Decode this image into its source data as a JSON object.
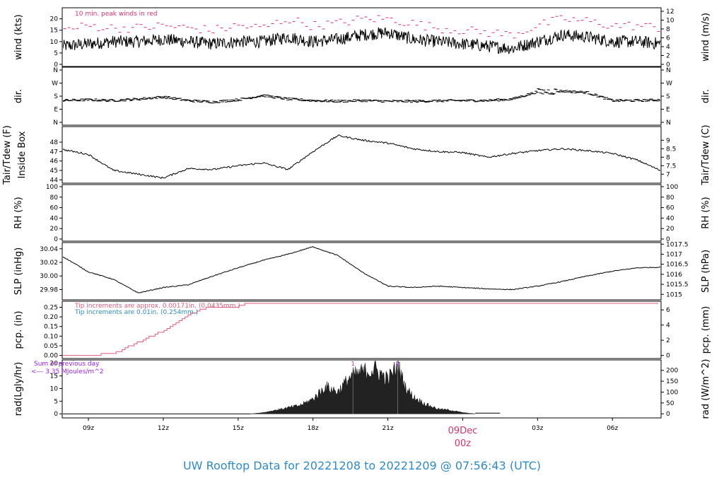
{
  "footer": {
    "title_prefix": "UW Rooftop Data for",
    "date_start": "20221208",
    "to": "to",
    "date_end": "20221209",
    "at": "@",
    "time": "07:56:43",
    "tz": "(UTC)",
    "full": "UW Rooftop Data for 20221208  to  20221209 @ 07:56:43  (UTC)"
  },
  "x_axis": {
    "ticks": [
      {
        "label": "09z",
        "hour": 9
      },
      {
        "label": "12z",
        "hour": 12
      },
      {
        "label": "15z",
        "hour": 15
      },
      {
        "label": "18z",
        "hour": 18
      },
      {
        "label": "21z",
        "hour": 21
      },
      {
        "label": "03z",
        "hour": 27
      },
      {
        "label": "06z",
        "hour": 30
      }
    ],
    "day_marker": {
      "date": "09Dec",
      "time": "00z",
      "hour": 24
    },
    "range_hours": [
      7.95,
      31.95
    ]
  },
  "colors": {
    "trace": "#000000",
    "peak": "#d6336c",
    "precip": "#e05a7a",
    "note_blue": "#2e8bc9",
    "note_purple": "#a020f0",
    "footer": "#2e8bc9",
    "day_marker": "#d6336c"
  },
  "chart_data": [
    {
      "id": "wind",
      "type": "line",
      "ylabel_left": "wind (kts)",
      "ylabel_right": "wind (m/s)",
      "ylim": [
        0,
        23
      ],
      "left_ticks": [
        0,
        5,
        10,
        15,
        20
      ],
      "right_ticks": [
        0,
        2,
        4,
        6,
        8,
        10,
        12
      ],
      "annotation": "10 min. peak winds in red",
      "series": [
        {
          "hours": [
            8,
            9,
            10,
            11,
            12,
            13,
            14,
            15,
            16,
            17,
            18,
            19,
            20,
            21,
            22,
            23,
            24,
            25,
            26,
            27,
            28,
            29,
            30,
            31,
            32
          ],
          "values": [
            8,
            9,
            10,
            10,
            11,
            10,
            9,
            10,
            10,
            12,
            10,
            11,
            13,
            14,
            11,
            10,
            9,
            8,
            7,
            10,
            13,
            12,
            10,
            10,
            9
          ]
        },
        {
          "name": "10 min. peak",
          "hours": [
            8,
            9,
            10,
            11,
            12,
            13,
            14,
            15,
            16,
            17,
            18,
            19,
            20,
            21,
            22,
            23,
            24,
            25,
            26,
            27,
            28,
            29,
            30,
            31,
            32
          ],
          "values": [
            15,
            17,
            16,
            16,
            17,
            16,
            15,
            17,
            16,
            20,
            17,
            18,
            20,
            20,
            18,
            16,
            15,
            14,
            13,
            17,
            20,
            19,
            17,
            17,
            16
          ]
        }
      ]
    },
    {
      "id": "dir",
      "type": "scatter",
      "ylabel_left": "dir.",
      "ylabel_right": "dir.",
      "ylim": [
        0,
        360
      ],
      "left_ticks": [
        "N",
        "E",
        "S",
        "W",
        "N"
      ],
      "right_ticks": [
        "N",
        "E",
        "S",
        "W",
        "N"
      ],
      "series": [
        {
          "hours": [
            8,
            9,
            10,
            11,
            12,
            13,
            14,
            15,
            16,
            17,
            18,
            19,
            20,
            21,
            22,
            23,
            24,
            25,
            26,
            27,
            28,
            29,
            30,
            31,
            32
          ],
          "values": [
            150,
            155,
            150,
            160,
            175,
            150,
            140,
            155,
            185,
            160,
            150,
            145,
            150,
            145,
            145,
            148,
            150,
            150,
            160,
            210,
            215,
            205,
            150,
            150,
            155
          ]
        }
      ]
    },
    {
      "id": "temp",
      "type": "line",
      "ylabel_left": "Inside Box",
      "ylabel_left_outer": "Tair/Tdew (F)",
      "ylabel_right": "Tair/Tdew (C)",
      "ylim": [
        43.8,
        49.2
      ],
      "left_ticks": [
        44,
        45,
        46,
        47,
        48
      ],
      "right_ticks": [
        7,
        7.5,
        8,
        8.5,
        9
      ],
      "series": [
        {
          "hours": [
            8,
            9,
            10,
            11,
            12,
            13,
            14,
            15,
            16,
            17,
            18,
            19,
            20,
            21,
            22,
            23,
            24,
            25,
            26,
            27,
            28,
            29,
            30,
            31,
            32
          ],
          "values": [
            47.2,
            46.7,
            45.0,
            44.6,
            44.2,
            45.2,
            45.1,
            45.5,
            45.8,
            45.1,
            47.0,
            48.7,
            48.2,
            47.9,
            47.3,
            47.0,
            46.9,
            46.4,
            46.8,
            47.1,
            47.3,
            47.1,
            46.8,
            46.1,
            44.9
          ]
        }
      ]
    },
    {
      "id": "rh",
      "type": "line",
      "ylabel_left": "RH (%)",
      "ylabel_right": "RH (%)",
      "ylim": [
        0,
        100
      ],
      "left_ticks": [
        0,
        20,
        40,
        60,
        80,
        100
      ],
      "right_ticks": [
        0,
        20,
        40,
        60,
        80,
        100
      ],
      "series": []
    },
    {
      "id": "slp",
      "type": "line",
      "ylabel_left": "SLP (inHg)",
      "ylabel_right": "SLP (hPa)",
      "ylim": [
        29.968,
        30.045
      ],
      "left_ticks": [
        29.98,
        30.0,
        30.02,
        30.04
      ],
      "right_ticks": [
        1015,
        1015.5,
        1016,
        1016.5,
        1017,
        1017.5
      ],
      "series": [
        {
          "hours": [
            8,
            9,
            10,
            11,
            12,
            13,
            14,
            15,
            16,
            17,
            18,
            19,
            20,
            21,
            22,
            23,
            24,
            25,
            26,
            27,
            28,
            29,
            30,
            31,
            32
          ],
          "values": [
            30.028,
            30.006,
            29.995,
            29.975,
            29.983,
            29.987,
            30.0,
            30.012,
            30.023,
            30.032,
            30.043,
            30.03,
            30.005,
            29.985,
            29.983,
            29.985,
            29.983,
            29.981,
            29.98,
            29.985,
            29.992,
            30.0,
            30.007,
            30.012,
            30.013
          ]
        }
      ]
    },
    {
      "id": "precip",
      "type": "line",
      "ylabel_left": "pcp. (in)",
      "ylabel_right": "pcp. (mm)",
      "ylim": [
        -0.005,
        0.27
      ],
      "left_ticks": [
        0.0,
        0.05,
        0.1,
        0.15,
        0.2,
        0.25
      ],
      "right_ticks": [
        0,
        2,
        4,
        6
      ],
      "annotations": [
        {
          "text": "Tip increments are approx. 0.00171in. (0.0435mm.)",
          "color": "precip"
        },
        {
          "text": "Tip increments are 0.01in. (0.254mm.)",
          "color": "note_blue"
        }
      ],
      "series": [
        {
          "hours": [
            8,
            9,
            10,
            10.5,
            11,
            11.5,
            12,
            12.5,
            13,
            13.5,
            14,
            14.5,
            15,
            15.4,
            16,
            24,
            32
          ],
          "values": [
            0.0,
            0.0,
            0.01,
            0.04,
            0.07,
            0.1,
            0.13,
            0.17,
            0.21,
            0.24,
            0.252,
            0.254,
            0.255,
            0.27,
            0.27,
            0.27,
            0.27
          ]
        }
      ]
    },
    {
      "id": "rad",
      "type": "area",
      "ylabel_left": "rad(Lgly/hr)",
      "ylabel_right": "rad (W/m^2)",
      "ylim": [
        -0.5,
        20.2
      ],
      "left_ticks": [
        0,
        5,
        10,
        15,
        20
      ],
      "right_ticks": [
        0,
        50,
        100,
        150,
        200
      ],
      "annotations": [
        {
          "text": "Sum of previous day",
          "color": "note_purple"
        },
        {
          "text": "<--- 3.35 MJoules/m^2",
          "color": "note_purple"
        }
      ],
      "markers": [
        {
          "label": "1",
          "hour": 19.6
        },
        {
          "label": "2",
          "hour": 21.4
        }
      ],
      "series": [
        {
          "hours": [
            15.5,
            16,
            16.5,
            17,
            17.5,
            18,
            18.5,
            19,
            19.5,
            20,
            20.5,
            21,
            21.4,
            21.7,
            22,
            22.5,
            23,
            23.5,
            24,
            24.5
          ],
          "values": [
            0,
            0.5,
            1.5,
            2.5,
            3.5,
            6.0,
            11.0,
            9.0,
            15.0,
            17.0,
            18.0,
            14.0,
            19.5,
            11.0,
            7.0,
            4.0,
            2.0,
            1.5,
            0.5,
            0
          ]
        }
      ]
    }
  ]
}
